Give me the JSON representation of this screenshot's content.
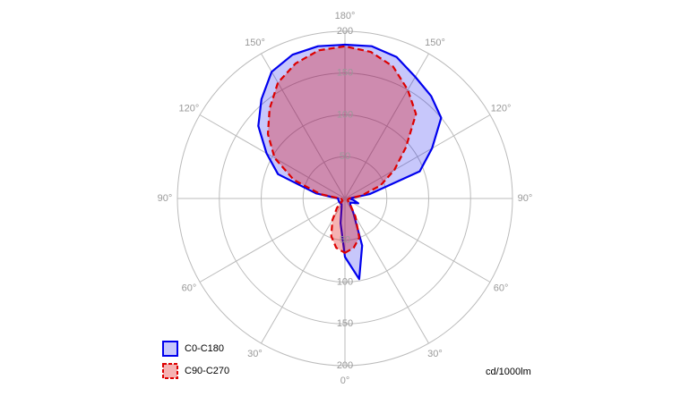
{
  "chart_data": {
    "type": "polar",
    "unit_label": "cd/1000lm",
    "angles": [
      0,
      10,
      20,
      30,
      40,
      50,
      60,
      70,
      80,
      90,
      100,
      110,
      120,
      130,
      140,
      150,
      160,
      170,
      180,
      190,
      200,
      210,
      220,
      230,
      240,
      250,
      260,
      270,
      280,
      290,
      300,
      310,
      320,
      330,
      340,
      350
    ],
    "series": [
      {
        "name": "C0-C180",
        "color": "#0000ee",
        "values": [
          70,
          98,
          60,
          20,
          10,
          8,
          10,
          17,
          10,
          5,
          30,
          95,
          120,
          150,
          160,
          168,
          180,
          185,
          184,
          185,
          183,
          175,
          155,
          135,
          108,
          85,
          35,
          8,
          8,
          8,
          8,
          8,
          8,
          8,
          12,
          30
        ]
      },
      {
        "name": "C90-C270",
        "color": "#dd0000",
        "values": [
          65,
          60,
          50,
          25,
          10,
          5,
          4,
          4,
          4,
          5,
          20,
          45,
          68,
          95,
          132,
          150,
          168,
          178,
          182,
          180,
          172,
          160,
          140,
          120,
          97,
          65,
          30,
          6,
          4,
          4,
          4,
          4,
          15,
          30,
          48,
          60
        ]
      }
    ],
    "rlim": [
      0,
      200
    ],
    "rticks": [
      50,
      100,
      150,
      200
    ],
    "angle_ticks": [
      {
        "value": 0,
        "label": "0°"
      },
      {
        "value": 30,
        "label": "30°"
      },
      {
        "value": 60,
        "label": "60°"
      },
      {
        "value": 90,
        "label": "90°"
      },
      {
        "value": 120,
        "label": "120°"
      },
      {
        "value": 150,
        "label": "150°"
      },
      {
        "value": 180,
        "label": "180°"
      },
      {
        "value": 210,
        "label": "150°"
      },
      {
        "value": 240,
        "label": "120°"
      },
      {
        "value": 270,
        "label": "90°"
      },
      {
        "value": 300,
        "label": "60°"
      },
      {
        "value": 330,
        "label": "30°"
      }
    ]
  }
}
